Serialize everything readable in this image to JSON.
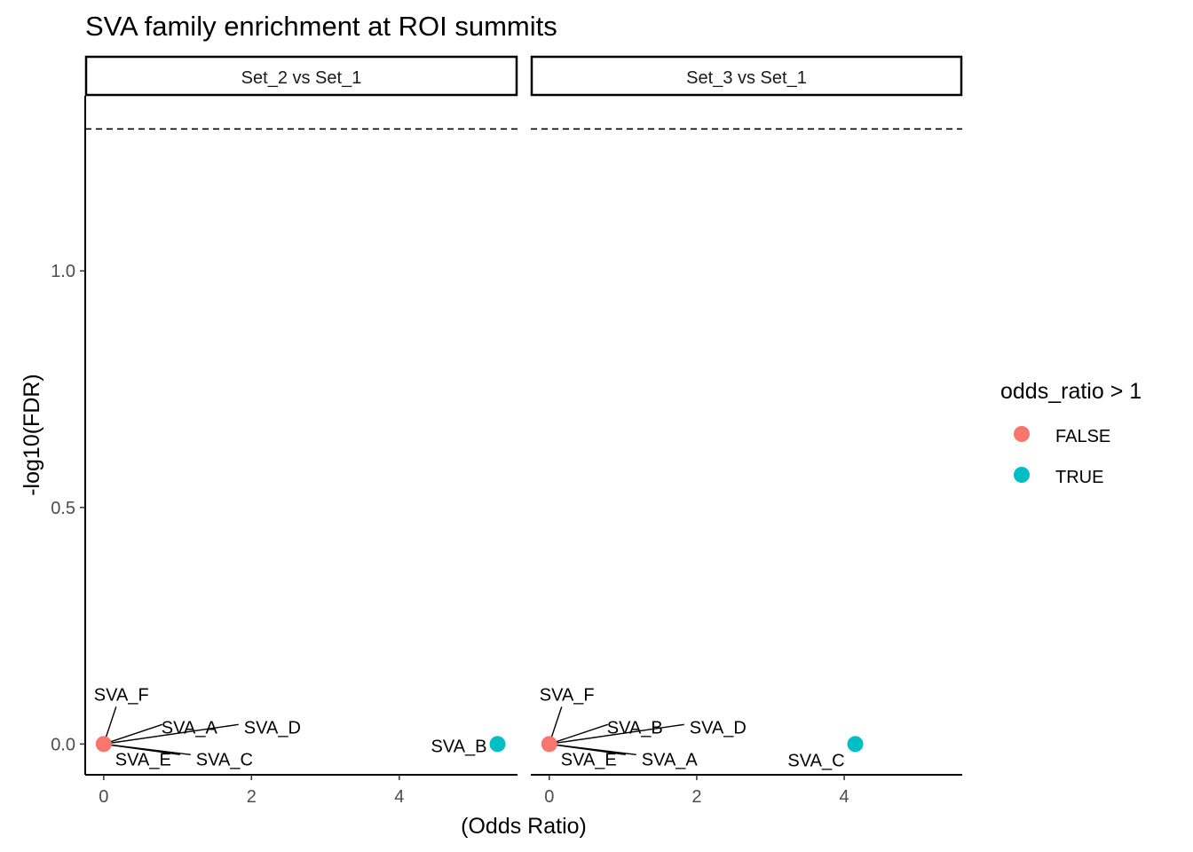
{
  "chart_data": {
    "type": "scatter",
    "title": "SVA family enrichment at ROI summits",
    "xlabel": "(Odds Ratio)",
    "ylabel": "-log10(FDR)",
    "xlim": [
      -0.25,
      5.6
    ],
    "ylim": [
      -0.065,
      1.37
    ],
    "x_ticks": [
      0,
      2,
      4
    ],
    "y_ticks": [
      0.0,
      0.5,
      1.0
    ],
    "y_tick_labels": [
      "0.0",
      "0.5",
      "1.0"
    ],
    "threshold_line": {
      "y": 1.3,
      "style": "dashed"
    },
    "legend": {
      "title": "odds_ratio > 1",
      "position": "right",
      "entries": [
        {
          "label": "FALSE",
          "color": "#F8766D"
        },
        {
          "label": "TRUE",
          "color": "#00BFC4"
        }
      ]
    },
    "facets": [
      {
        "label": "Set_2 vs Set_1",
        "points": [
          {
            "x": 0.0,
            "y": 0.0,
            "group": "FALSE"
          },
          {
            "x": 5.33,
            "y": 0.0,
            "group": "TRUE"
          }
        ],
        "labels": [
          {
            "text": "SVA_F",
            "px": 0.0,
            "py": 0.0
          },
          {
            "text": "SVA_A",
            "px": 0.0,
            "py": 0.0
          },
          {
            "text": "SVA_D",
            "px": 0.0,
            "py": 0.0
          },
          {
            "text": "SVA_E",
            "px": 0.0,
            "py": 0.0
          },
          {
            "text": "SVA_C",
            "px": 0.0,
            "py": 0.0
          },
          {
            "text": "SVA_B",
            "px": 5.33,
            "py": 0.0
          }
        ]
      },
      {
        "label": "Set_3 vs Set_1",
        "points": [
          {
            "x": 0.0,
            "y": 0.0,
            "group": "FALSE"
          },
          {
            "x": 4.15,
            "y": 0.0,
            "group": "TRUE"
          }
        ],
        "labels": [
          {
            "text": "SVA_F",
            "px": 0.0,
            "py": 0.0
          },
          {
            "text": "SVA_B",
            "px": 0.0,
            "py": 0.0
          },
          {
            "text": "SVA_D",
            "px": 0.0,
            "py": 0.0
          },
          {
            "text": "SVA_E",
            "px": 0.0,
            "py": 0.0
          },
          {
            "text": "SVA_A",
            "px": 0.0,
            "py": 0.0
          },
          {
            "text": "SVA_C",
            "px": 4.15,
            "py": 0.0
          }
        ]
      }
    ]
  }
}
